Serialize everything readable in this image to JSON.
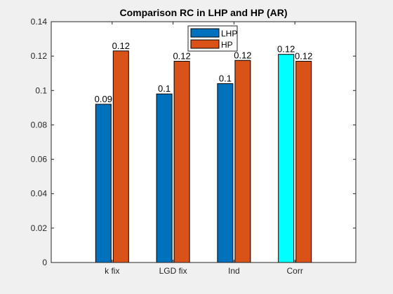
{
  "chart_data": {
    "type": "bar",
    "title": "Comparison RC in LHP and HP (AR)",
    "xlabel": "",
    "ylabel": "",
    "categories": [
      "k fix",
      "LGD fix",
      "Ind",
      "Corr"
    ],
    "ylim": [
      0,
      0.14
    ],
    "yticks": [
      0,
      0.02,
      0.04,
      0.06,
      0.08,
      0.1,
      0.12,
      0.14
    ],
    "ytick_labels": [
      "0",
      "0.02",
      "0.04",
      "0.06",
      "0.08",
      "0.1",
      "0.12",
      "0.14"
    ],
    "grid": false,
    "legend_position": "top-center",
    "series": [
      {
        "name": "LHP",
        "color": "#0072bd",
        "values": [
          0.092,
          0.098,
          0.104,
          0.121
        ],
        "labels": [
          "0.09",
          "0.1",
          "0.1",
          "0.12"
        ],
        "highlight": {
          "index": 3,
          "color": "#00ffff"
        }
      },
      {
        "name": "HP",
        "color": "#d95319",
        "values": [
          0.123,
          0.117,
          0.1175,
          0.117
        ],
        "labels": [
          "0.12",
          "0.12",
          "0.12",
          "0.12"
        ]
      }
    ]
  }
}
